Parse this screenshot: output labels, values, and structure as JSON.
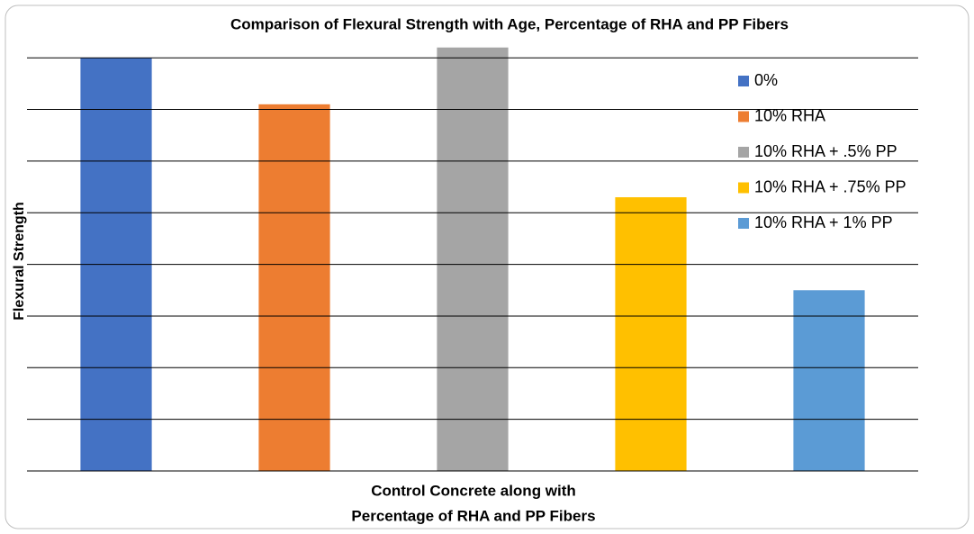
{
  "chart_data": {
    "type": "bar",
    "title": "Comparison of Flexural Strength with Age, Percentage of RHA and PP Fibers",
    "ylabel": "Flexural Strength",
    "xlabel": [
      "Control Concrete along with",
      "Percentage of RHA and PP Fibers"
    ],
    "categories": [
      null
    ],
    "series": [
      {
        "name": "0%",
        "color": "#4472c4",
        "values": [
          8.0
        ]
      },
      {
        "name": "10% RHA",
        "color": "#ed7d31",
        "values": [
          7.1
        ]
      },
      {
        "name": "10% RHA + .5% PP",
        "color": "#a5a5a5",
        "values": [
          8.2
        ]
      },
      {
        "name": "10% RHA + .75% PP",
        "color": "#ffc000",
        "values": [
          5.3
        ]
      },
      {
        "name": "10%  RHA + 1% PP",
        "color": "#5b9bd5",
        "values": [
          3.5
        ]
      }
    ],
    "ylim": [
      0,
      8.3
    ],
    "yticks": [
      0,
      1,
      2,
      3,
      4,
      5,
      6,
      7,
      8
    ],
    "grid": true,
    "legend": "right"
  }
}
